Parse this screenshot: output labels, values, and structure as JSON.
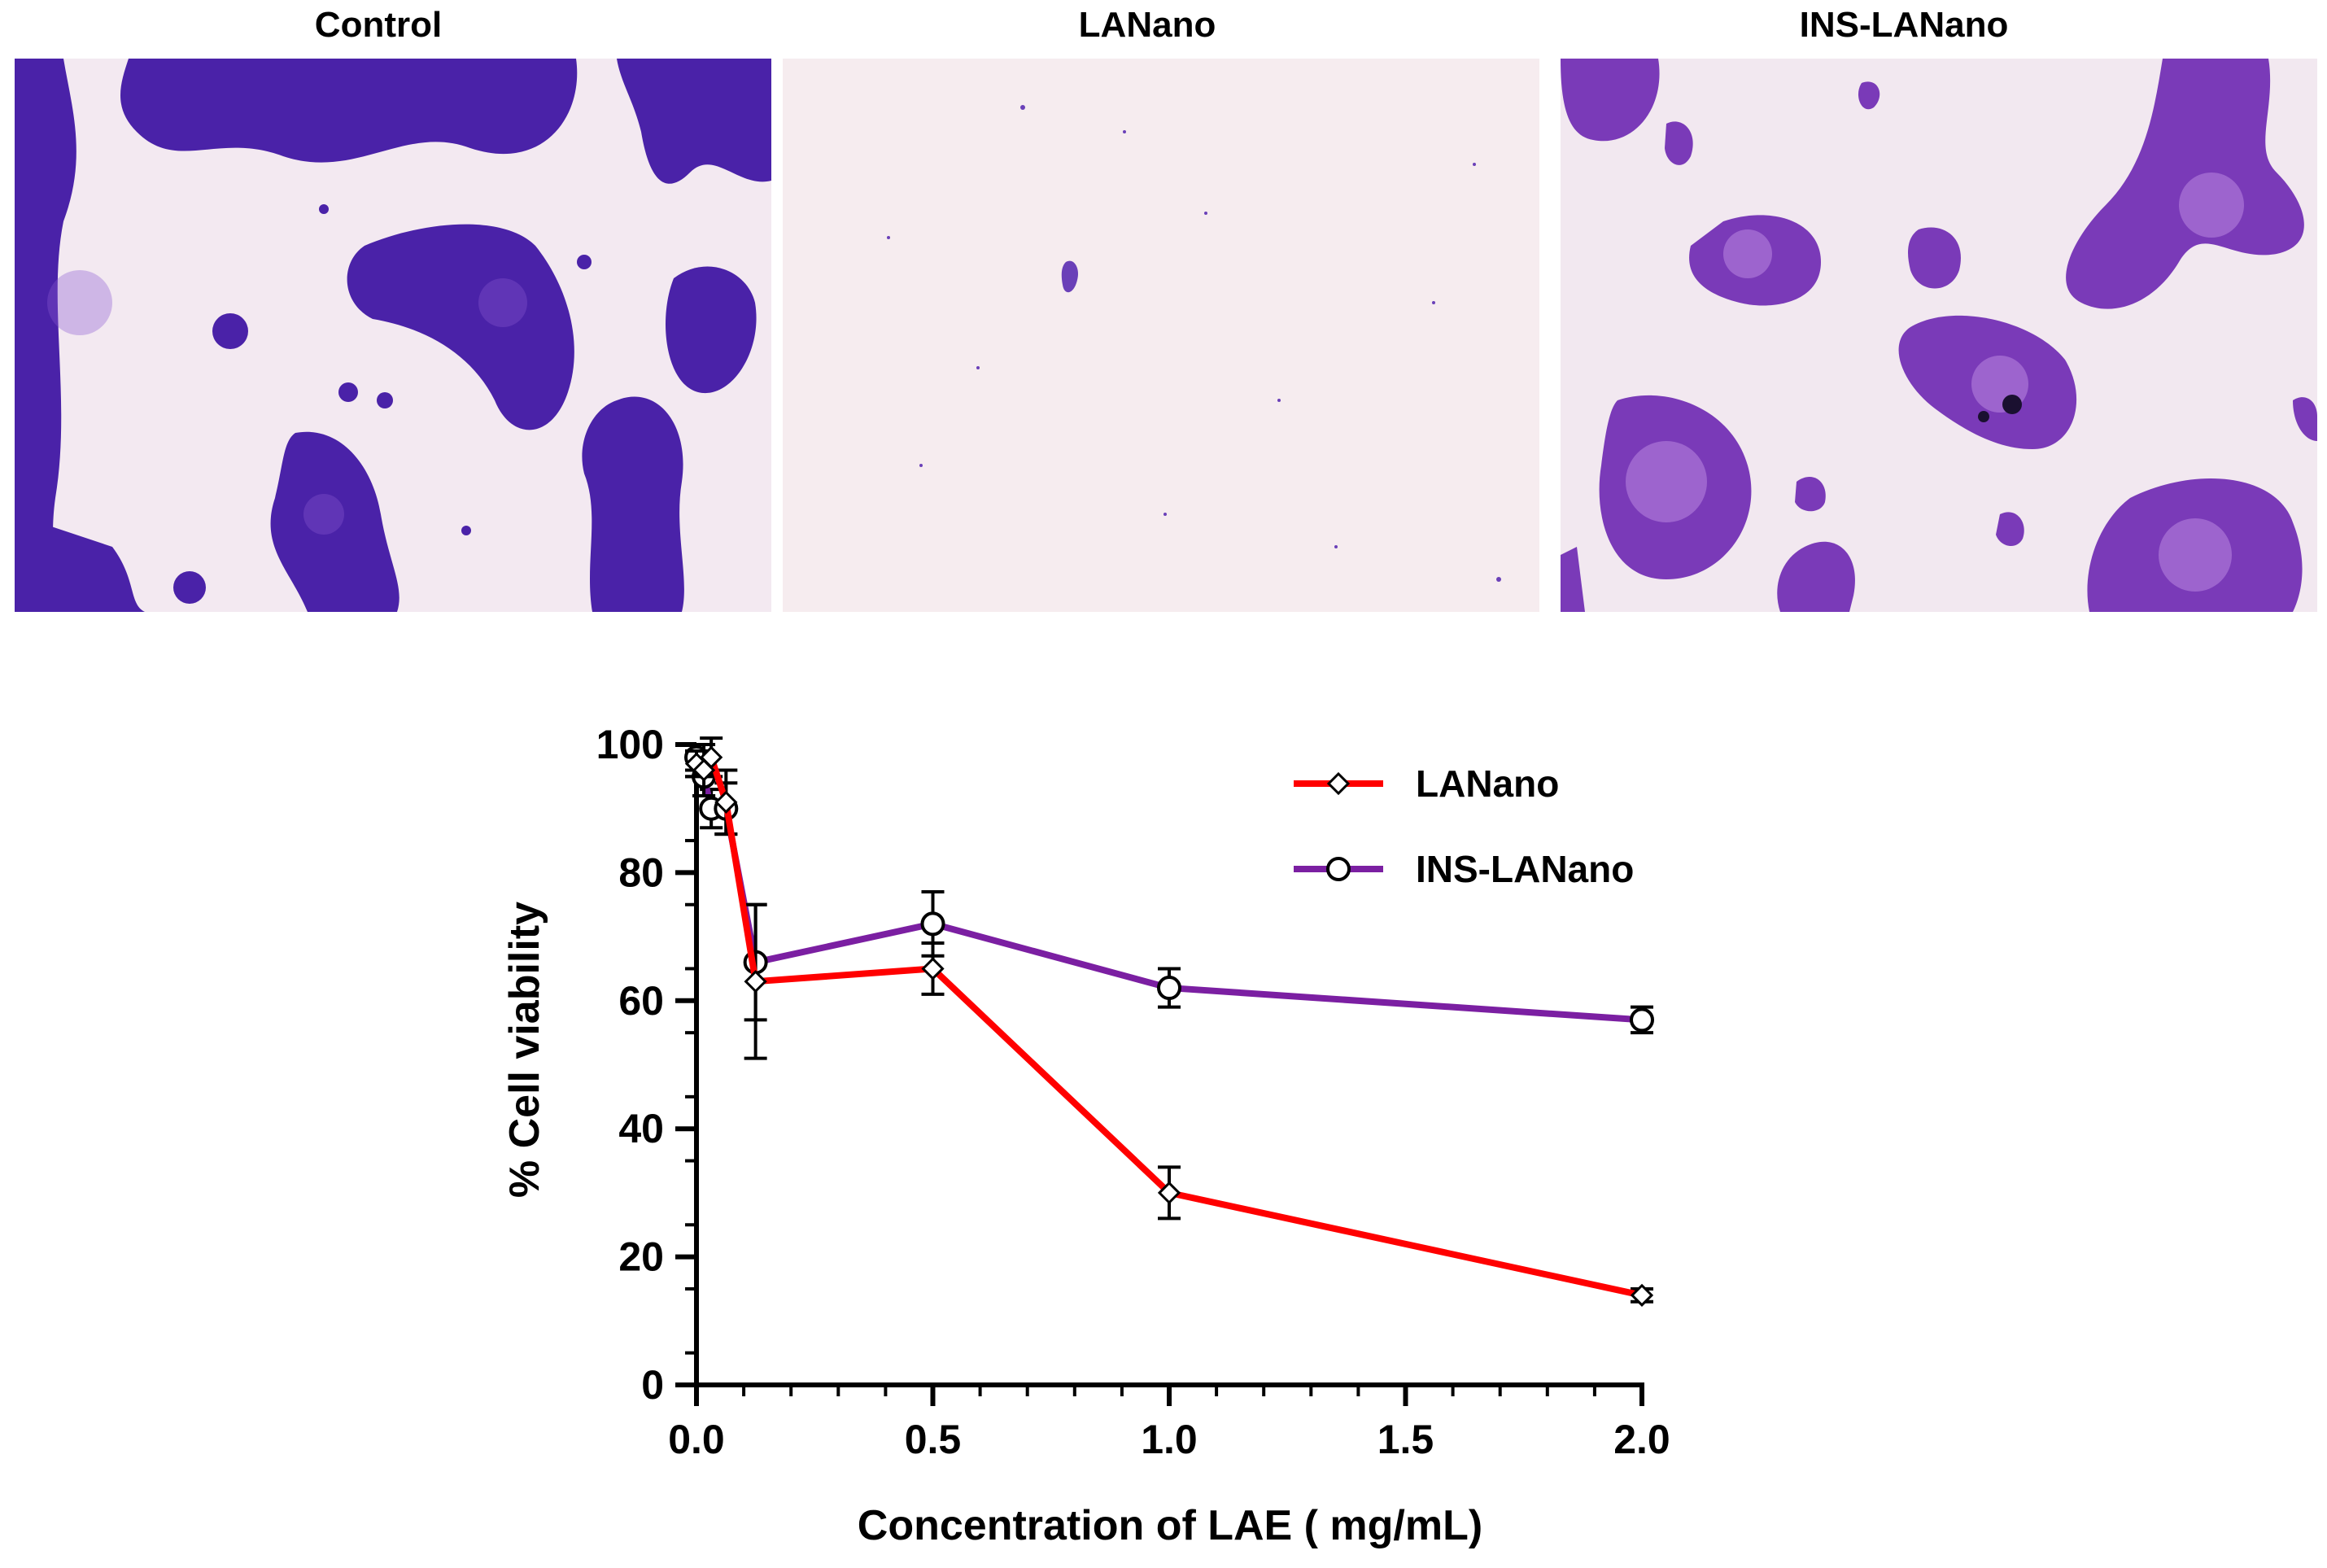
{
  "panels": [
    {
      "label": "Control"
    },
    {
      "label": "LANano"
    },
    {
      "label": "INS-LANano"
    }
  ],
  "chart_data": {
    "type": "line",
    "xlabel": "Concentration of LAE ( mg/mL)",
    "ylabel": "% Cell viability",
    "xlim": [
      0,
      2.0
    ],
    "ylim": [
      0,
      100
    ],
    "x_ticks": [
      "0.0",
      "0.5",
      "1.0",
      "1.5",
      "2.0"
    ],
    "y_ticks": [
      "0",
      "20",
      "40",
      "60",
      "80",
      "100"
    ],
    "legend_position": "top-right",
    "series": [
      {
        "name": "LANano",
        "color": "#ff0000",
        "marker": "diamond",
        "x": [
          0.0,
          0.015625,
          0.03125,
          0.0625,
          0.125,
          0.5,
          1.0,
          2.0
        ],
        "y": [
          97,
          96,
          98,
          91,
          63,
          65,
          30,
          14
        ],
        "err": [
          2,
          4,
          3,
          5,
          12,
          4,
          4,
          1
        ]
      },
      {
        "name": "INS-LANano",
        "color": "#7b1fa2",
        "marker": "circle",
        "x": [
          0.0,
          0.015625,
          0.03125,
          0.0625,
          0.125,
          0.5,
          1.0,
          2.0
        ],
        "y": [
          98,
          95,
          90,
          90,
          66,
          72,
          62,
          57
        ],
        "err": [
          2,
          3,
          3,
          4,
          9,
          5,
          3,
          2
        ]
      }
    ]
  }
}
